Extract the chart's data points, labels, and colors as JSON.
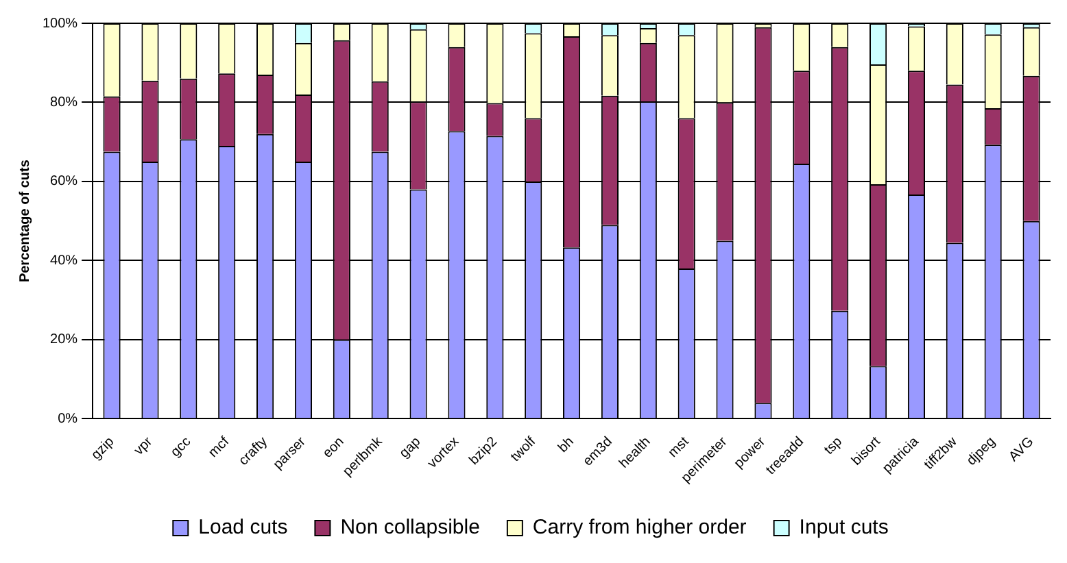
{
  "chart_data": {
    "type": "bar",
    "stacked": true,
    "ylabel": "Percentage of cuts",
    "categories": [
      "gzip",
      "vpr",
      "gcc",
      "mcf",
      "crafty",
      "parser",
      "eon",
      "perlbmk",
      "gap",
      "vortex",
      "bzip2",
      "twolf",
      "bh",
      "em3d",
      "health",
      "mst",
      "perimeter",
      "power",
      "treeadd",
      "tsp",
      "bisort",
      "patricia",
      "tiff2bw",
      "djpeg",
      "AVG"
    ],
    "series": [
      {
        "name": "Load cuts",
        "color": "#9999ff",
        "values": [
          67.5,
          65,
          70.7,
          69,
          72,
          65,
          20,
          67.5,
          58,
          72.7,
          71.5,
          60,
          43.3,
          49,
          80.2,
          38,
          45,
          4,
          64.5,
          27.3,
          13.3,
          56.7,
          44.5,
          69.3,
          50
        ]
      },
      {
        "name": "Non collapsible",
        "color": "#993366",
        "values": [
          14,
          20.5,
          15.3,
          18.3,
          15,
          17,
          75.7,
          17.8,
          22.2,
          21.3,
          8.3,
          16,
          53.4,
          32.7,
          14.8,
          38,
          35,
          95,
          23.5,
          66.7,
          46,
          31.3,
          40,
          9.2,
          36.7
        ]
      },
      {
        "name": "Carry from higher order",
        "color": "#ffffcc",
        "values": [
          18.5,
          14.5,
          14,
          12.7,
          13,
          13,
          4.3,
          14.7,
          18.3,
          6,
          20.2,
          21.5,
          3.3,
          15.3,
          3.8,
          21,
          20,
          1,
          12,
          6,
          30.3,
          11.2,
          15.5,
          18.7,
          12.3
        ]
      },
      {
        "name": "Input cuts",
        "color": "#ccffff",
        "values": [
          0,
          0,
          0,
          0,
          null,
          5,
          0,
          null,
          1.5,
          0,
          null,
          2.5,
          0,
          3,
          1.2,
          3,
          0,
          0,
          0,
          0,
          10.4,
          0.8,
          0,
          2.8,
          1
        ]
      }
    ],
    "ylim": [
      0,
      100
    ],
    "yticks": [
      {
        "value": 0,
        "label": "0%"
      },
      {
        "value": 20,
        "label": "20%"
      },
      {
        "value": 40,
        "label": "40%"
      },
      {
        "value": 60,
        "label": "60%"
      },
      {
        "value": 80,
        "label": "80%"
      },
      {
        "value": 100,
        "label": "100%"
      }
    ],
    "grid": "y",
    "legend": "bottom"
  }
}
